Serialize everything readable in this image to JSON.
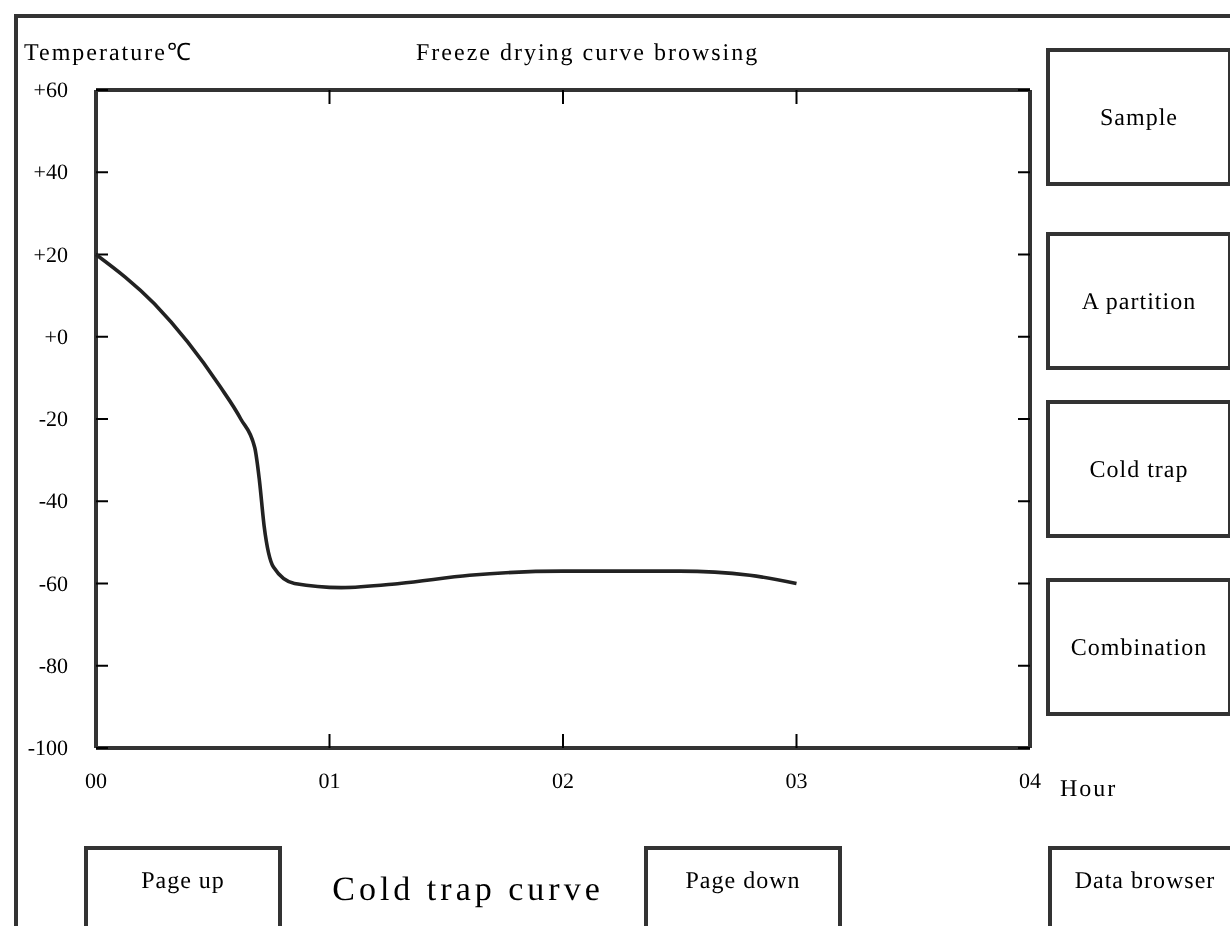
{
  "chart_data": {
    "type": "line",
    "title": "Freeze drying curve browsing",
    "subtitle": "Cold trap curve",
    "ylabel": "Temperature℃",
    "xlabel": "Hour",
    "x": [
      0,
      0.25,
      0.53,
      0.62,
      0.68,
      0.7,
      0.72,
      0.76,
      0.85,
      1.05,
      1.3,
      1.6,
      2.0,
      2.5,
      2.8,
      3.0
    ],
    "series": [
      {
        "color": "#222222",
        "values": [
          20,
          8,
          -12,
          -20,
          -27,
          -35,
          -46,
          -56,
          -60,
          -61,
          -60,
          -58,
          -57,
          -57,
          -58,
          -60
        ]
      }
    ],
    "xlim": [
      0,
      4
    ],
    "xticks": [
      {
        "value": 0,
        "label": "00"
      },
      {
        "value": 1,
        "label": "01"
      },
      {
        "value": 2,
        "label": "02"
      },
      {
        "value": 3,
        "label": "03"
      },
      {
        "value": 4,
        "label": "04"
      }
    ],
    "ylim": [
      -100,
      60
    ],
    "yticks": [
      {
        "value": 60,
        "label": "+60"
      },
      {
        "value": 40,
        "label": "+40"
      },
      {
        "value": 20,
        "label": "+20"
      },
      {
        "value": 0,
        "label": "+0"
      },
      -20,
      -40,
      -60,
      -80,
      -100
    ],
    "line_style": "solid",
    "annotations": [
      "Sample",
      "A partition",
      "Cold trap",
      "Combination",
      "Page up",
      "Page down",
      "Data browser"
    ]
  }
}
